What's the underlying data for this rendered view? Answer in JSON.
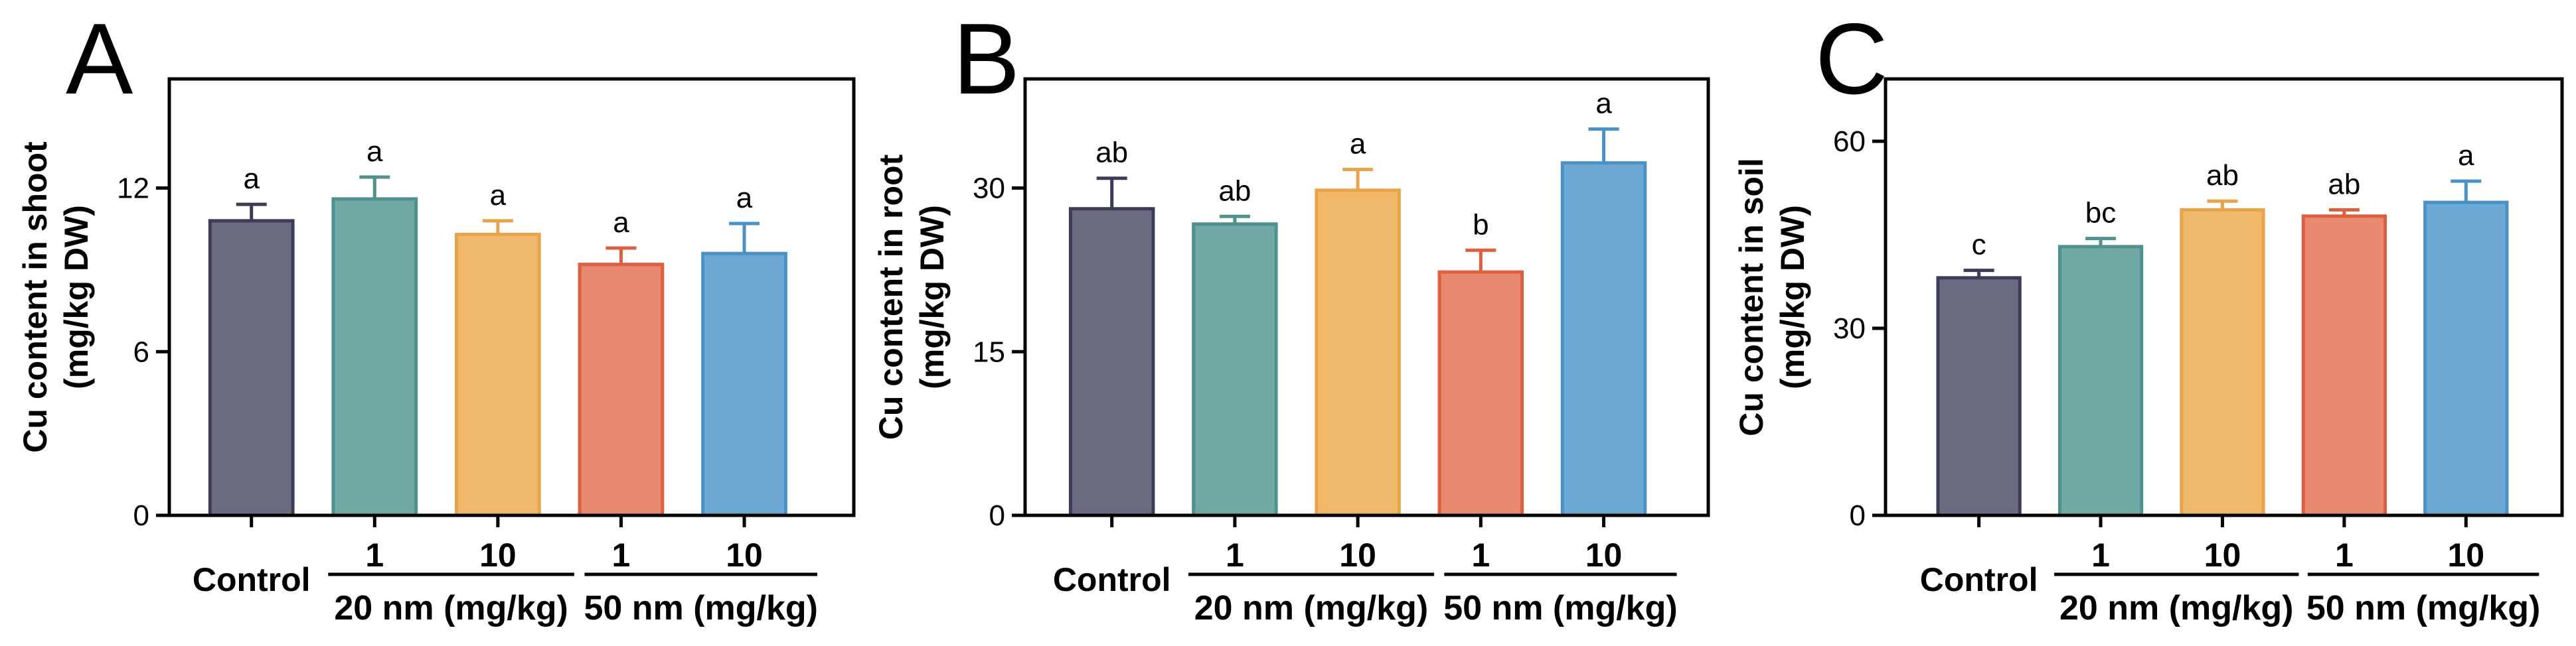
{
  "series_colors": {
    "fill": [
      "#6b6b7f",
      "#70a8a6",
      "#efb86b",
      "#e7896f",
      "#6ea9d4"
    ],
    "stroke": [
      "#3c3c58",
      "#4f918e",
      "#e8a44a",
      "#dc5f42",
      "#4c91c6"
    ]
  },
  "chart_data": [
    {
      "type": "bar",
      "panel_label": "A",
      "categories": [
        "Control",
        "1",
        "10",
        "1",
        "10"
      ],
      "groups": [
        {
          "label": "20 nm (mg/kg)",
          "members": [
            1,
            2
          ]
        },
        {
          "label": "50 nm (mg/kg)",
          "members": [
            3,
            4
          ]
        }
      ],
      "values": [
        10.8,
        11.6,
        10.3,
        9.2,
        9.6
      ],
      "errors": [
        0.6,
        0.8,
        0.5,
        0.6,
        1.1
      ],
      "significance": [
        "a",
        "a",
        "a",
        "a",
        "a"
      ],
      "ylabel": [
        "Cu content in shoot",
        "(mg/kg DW)"
      ],
      "yticks": [
        0,
        6,
        12
      ],
      "ylim": [
        0,
        16
      ]
    },
    {
      "type": "bar",
      "panel_label": "B",
      "categories": [
        "Control",
        "1",
        "10",
        "1",
        "10"
      ],
      "groups": [
        {
          "label": "20 nm (mg/kg)",
          "members": [
            1,
            2
          ]
        },
        {
          "label": "50 nm (mg/kg)",
          "members": [
            3,
            4
          ]
        }
      ],
      "values": [
        28.1,
        26.7,
        29.8,
        22.3,
        32.3
      ],
      "errors": [
        2.8,
        0.7,
        1.9,
        2.0,
        3.1
      ],
      "significance": [
        "ab",
        "ab",
        "a",
        "b",
        "a"
      ],
      "ylabel": [
        "Cu content in root",
        "(mg/kg DW)"
      ],
      "yticks": [
        0,
        15,
        30
      ],
      "ylim": [
        0,
        40
      ]
    },
    {
      "type": "bar",
      "panel_label": "C",
      "categories": [
        "Control",
        "1",
        "10",
        "1",
        "10"
      ],
      "groups": [
        {
          "label": "20 nm (mg/kg)",
          "members": [
            1,
            2
          ]
        },
        {
          "label": "50 nm (mg/kg)",
          "members": [
            3,
            4
          ]
        }
      ],
      "values": [
        38.1,
        43.1,
        49.0,
        48.0,
        50.2
      ],
      "errors": [
        1.2,
        1.3,
        1.4,
        1.0,
        3.4
      ],
      "significance": [
        "c",
        "bc",
        "ab",
        "ab",
        "a"
      ],
      "ylabel": [
        "Cu content in soil",
        "(mg/kg DW)"
      ],
      "yticks": [
        0,
        30,
        60
      ],
      "ylim": [
        0,
        70
      ]
    }
  ]
}
